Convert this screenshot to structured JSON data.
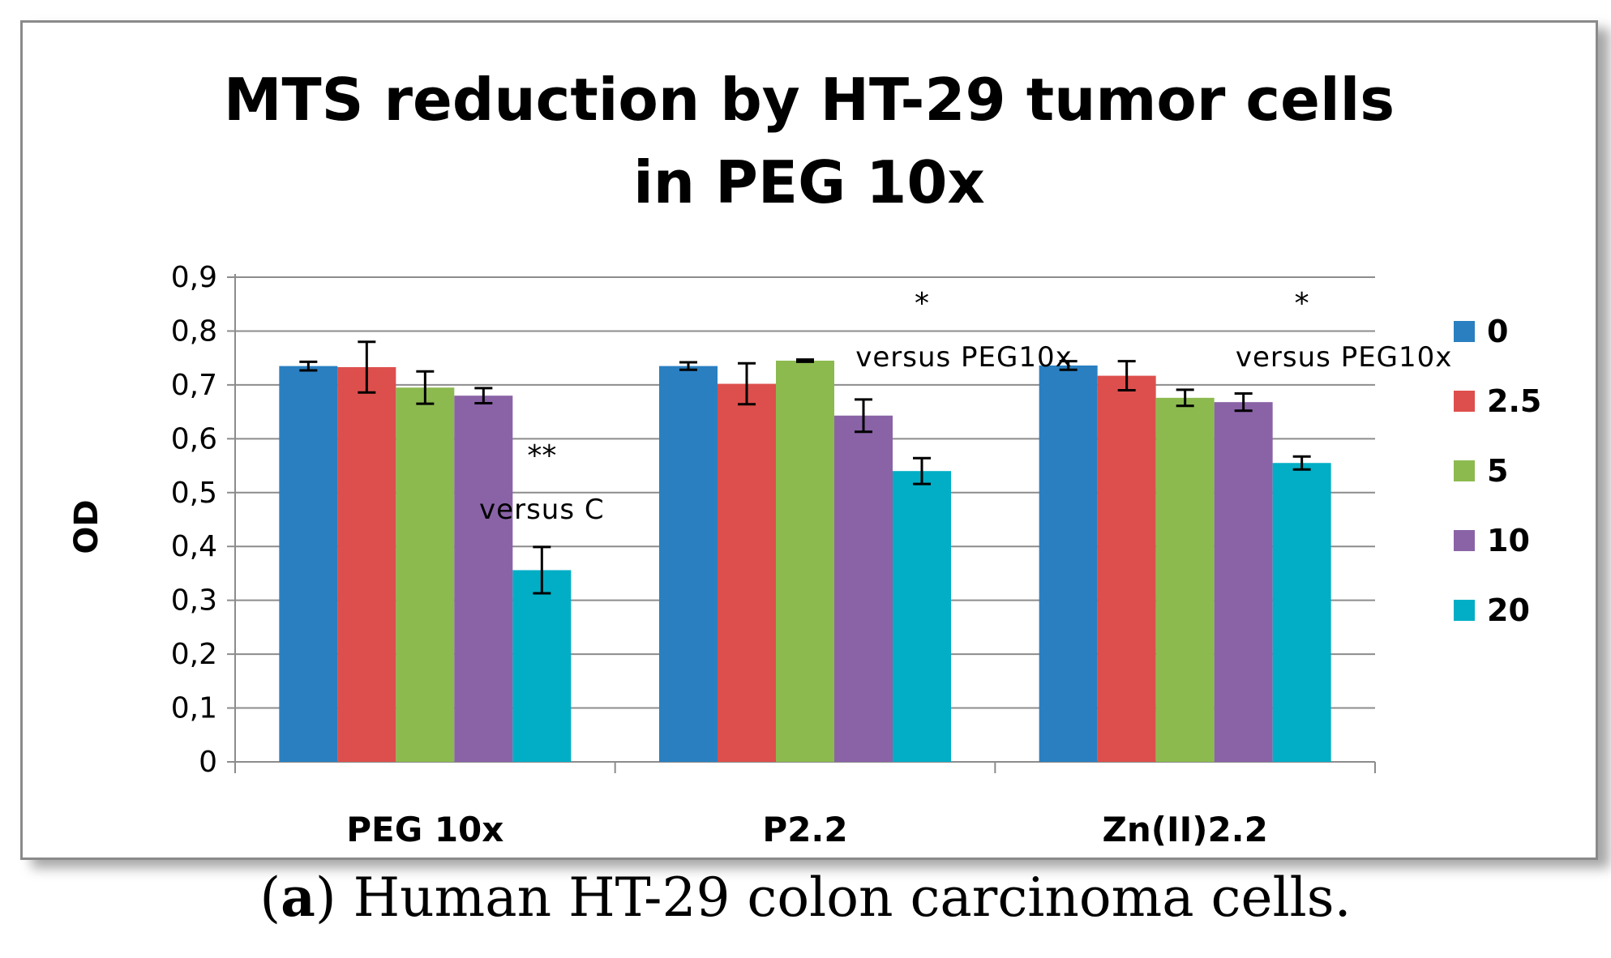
{
  "chart_data": {
    "type": "bar",
    "title_lines": [
      "MTS reduction by HT-29 tumor cells",
      "in PEG 10x"
    ],
    "ylabel": "OD",
    "xlabel": "",
    "ylim": [
      0,
      0.9
    ],
    "yticks": [
      "0",
      "0,1",
      "0,2",
      "0,3",
      "0,4",
      "0,5",
      "0,6",
      "0,7",
      "0,8",
      "0,9"
    ],
    "grid": true,
    "legend_position": "right",
    "categories": [
      "PEG 10x",
      "P2.2",
      "Zn(II)2.2"
    ],
    "series": [
      {
        "name": "0",
        "color": "#2a7fc0",
        "values": [
          0.735,
          0.735,
          0.736
        ],
        "errors": [
          0.008,
          0.007,
          0.008
        ]
      },
      {
        "name": "2.5",
        "color": "#dd4f4c",
        "values": [
          0.733,
          0.702,
          0.717
        ],
        "errors": [
          0.047,
          0.038,
          0.027
        ]
      },
      {
        "name": "5",
        "color": "#8cba4f",
        "values": [
          0.695,
          0.745,
          0.676
        ],
        "errors": [
          0.03,
          0.002,
          0.015
        ]
      },
      {
        "name": "10",
        "color": "#8a63a7",
        "values": [
          0.68,
          0.643,
          0.668
        ],
        "errors": [
          0.014,
          0.03,
          0.016
        ]
      },
      {
        "name": "20",
        "color": "#02aec6",
        "values": [
          0.356,
          0.54,
          0.555
        ],
        "errors": [
          0.043,
          0.024,
          0.012
        ]
      }
    ],
    "annotations": [
      {
        "category": 0,
        "stars": "**",
        "text": "versus C"
      },
      {
        "category": 1,
        "stars": "*",
        "text": "versus PEG10x"
      },
      {
        "category": 2,
        "stars": "*",
        "text": "versus PEG10x"
      }
    ]
  },
  "caption": {
    "label": "a",
    "text": "Human HT-29 colon carcinoma cells."
  }
}
